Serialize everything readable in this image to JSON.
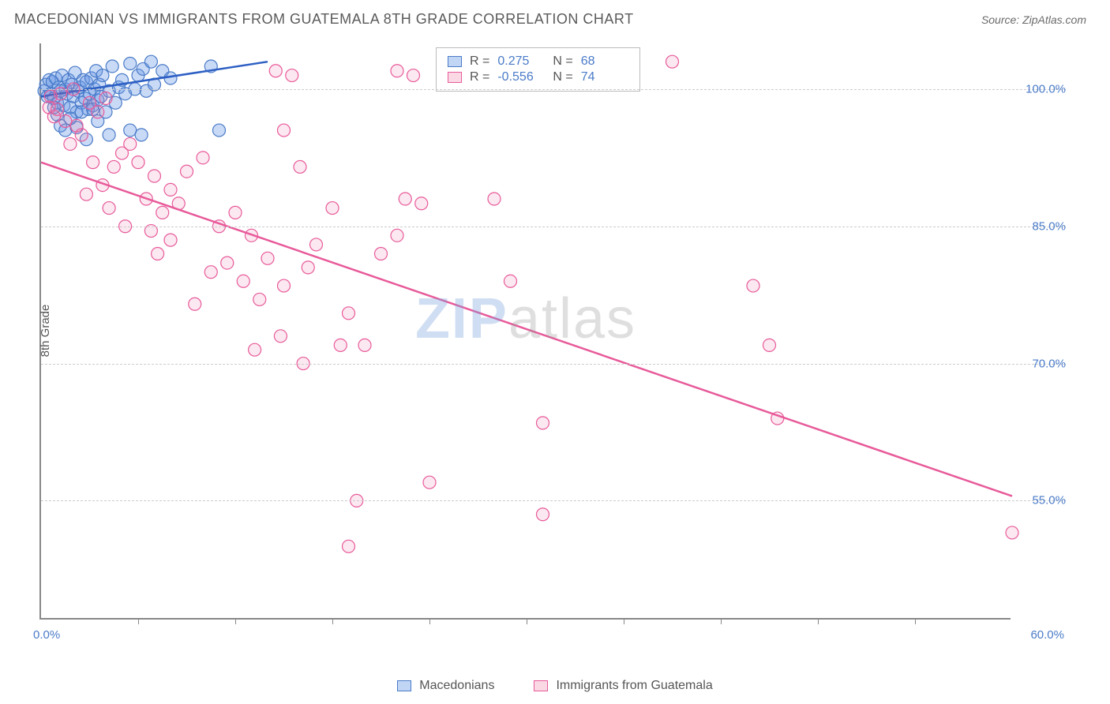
{
  "header": {
    "title": "MACEDONIAN VS IMMIGRANTS FROM GUATEMALA 8TH GRADE CORRELATION CHART",
    "source": "Source: ZipAtlas.com"
  },
  "chart": {
    "type": "scatter",
    "y_label": "8th Grade",
    "background_color": "#ffffff",
    "grid_color": "#cccccc",
    "axis_color": "#888888",
    "tick_label_color": "#4a7bc8",
    "label_fontsize": 15,
    "title_fontsize": 18,
    "xlim": [
      0,
      60
    ],
    "ylim": [
      42,
      105
    ],
    "x_ticks": [
      0,
      30,
      60
    ],
    "x_tick_labels": [
      "0.0%",
      "",
      "60.0%"
    ],
    "x_minor_ticks": [
      6,
      12,
      18,
      24,
      30,
      36,
      42,
      48,
      54
    ],
    "y_ticks": [
      55,
      70,
      85,
      100
    ],
    "y_tick_labels": [
      "55.0%",
      "70.0%",
      "85.0%",
      "100.0%"
    ],
    "marker_radius": 8,
    "marker_fill_opacity": 0.3,
    "marker_stroke_width": 1.2,
    "line_width": 2.5,
    "watermark": {
      "text_a": "ZIP",
      "text_b": "atlas"
    },
    "series": [
      {
        "name": "Macedonians",
        "color": "#4a7bc8",
        "fill": "rgba(100,150,230,0.35)",
        "R": "0.275",
        "N": "68",
        "trend": {
          "x1": 0,
          "y1": 99.2,
          "x2": 14,
          "y2": 103
        },
        "points": [
          [
            0.2,
            99.8
          ],
          [
            0.3,
            100.5
          ],
          [
            0.4,
            99.2
          ],
          [
            0.5,
            101
          ],
          [
            0.6,
            99.5
          ],
          [
            0.7,
            100.8
          ],
          [
            0.8,
            99
          ],
          [
            0.9,
            101.2
          ],
          [
            1.0,
            98.5
          ],
          [
            1.1,
            100.2
          ],
          [
            1.2,
            99.8
          ],
          [
            1.3,
            101.5
          ],
          [
            1.4,
            98.2
          ],
          [
            1.5,
            100
          ],
          [
            1.6,
            99.5
          ],
          [
            1.7,
            101
          ],
          [
            1.8,
            98
          ],
          [
            1.9,
            100.5
          ],
          [
            2.0,
            99.2
          ],
          [
            2.1,
            101.8
          ],
          [
            2.2,
            97.5
          ],
          [
            2.3,
            99.8
          ],
          [
            2.4,
            100.2
          ],
          [
            2.5,
            98.5
          ],
          [
            2.6,
            101
          ],
          [
            2.7,
            99
          ],
          [
            2.8,
            100.8
          ],
          [
            2.9,
            97.8
          ],
          [
            3.0,
            99.5
          ],
          [
            3.1,
            101.2
          ],
          [
            3.2,
            98.2
          ],
          [
            3.3,
            100
          ],
          [
            3.4,
            102
          ],
          [
            3.5,
            98.8
          ],
          [
            3.6,
            100.5
          ],
          [
            3.7,
            99.2
          ],
          [
            3.8,
            101.5
          ],
          [
            4.0,
            97.5
          ],
          [
            4.2,
            99.8
          ],
          [
            4.4,
            102.5
          ],
          [
            4.6,
            98.5
          ],
          [
            4.8,
            100.2
          ],
          [
            5.0,
            101
          ],
          [
            5.2,
            99.5
          ],
          [
            5.5,
            102.8
          ],
          [
            5.8,
            100
          ],
          [
            6.0,
            101.5
          ],
          [
            6.3,
            102.2
          ],
          [
            6.5,
            99.8
          ],
          [
            6.8,
            103
          ],
          [
            7.0,
            100.5
          ],
          [
            7.5,
            102
          ],
          [
            8.0,
            101.2
          ],
          [
            1.2,
            96
          ],
          [
            1.5,
            95.5
          ],
          [
            2.2,
            95.8
          ],
          [
            2.8,
            94.5
          ],
          [
            1.8,
            96.8
          ],
          [
            3.5,
            96.5
          ],
          [
            4.2,
            95
          ],
          [
            5.5,
            95.5
          ],
          [
            1.0,
            97.2
          ],
          [
            0.8,
            98
          ],
          [
            2.5,
            97.5
          ],
          [
            3.2,
            97.8
          ],
          [
            10.5,
            102.5
          ],
          [
            11,
            95.5
          ],
          [
            6.2,
            95
          ]
        ]
      },
      {
        "name": "Immigrants from Guatemala",
        "color": "#e85a9a",
        "fill": "rgba(240,130,170,0.18)",
        "R": "-0.556",
        "N": "74",
        "trend": {
          "x1": 0,
          "y1": 92,
          "x2": 60,
          "y2": 55.5
        },
        "points": [
          [
            0.5,
            98
          ],
          [
            0.8,
            97
          ],
          [
            1.2,
            99.5
          ],
          [
            1.5,
            96.5
          ],
          [
            2,
            100
          ],
          [
            2.5,
            95
          ],
          [
            3,
            98.5
          ],
          [
            1.8,
            94
          ],
          [
            2.2,
            96
          ],
          [
            3.5,
            97.5
          ],
          [
            4,
            99
          ],
          [
            1,
            97.8
          ],
          [
            0.6,
            99.2
          ],
          [
            3.2,
            92
          ],
          [
            4.5,
            91.5
          ],
          [
            5,
            93
          ],
          [
            2.8,
            88.5
          ],
          [
            3.8,
            89.5
          ],
          [
            6,
            92
          ],
          [
            5.5,
            94
          ],
          [
            7,
            90.5
          ],
          [
            4.2,
            87
          ],
          [
            8,
            89
          ],
          [
            6.5,
            88
          ],
          [
            9,
            91
          ],
          [
            7.5,
            86.5
          ],
          [
            10,
            92.5
          ],
          [
            5.2,
            85
          ],
          [
            8.5,
            87.5
          ],
          [
            15,
            95.5
          ],
          [
            14.5,
            102
          ],
          [
            15.5,
            101.5
          ],
          [
            11,
            85
          ],
          [
            12,
            86.5
          ],
          [
            13,
            84
          ],
          [
            16,
            91.5
          ],
          [
            17,
            83
          ],
          [
            14,
            81.5
          ],
          [
            22,
            102
          ],
          [
            23,
            101.5
          ],
          [
            22.5,
            88
          ],
          [
            20,
            72
          ],
          [
            19,
            75.5
          ],
          [
            21,
            82
          ],
          [
            23.5,
            87.5
          ],
          [
            22,
            84
          ],
          [
            18,
            87
          ],
          [
            9.5,
            76.5
          ],
          [
            12.5,
            79
          ],
          [
            11.5,
            81
          ],
          [
            10.5,
            80
          ],
          [
            13.5,
            77
          ],
          [
            15,
            78.5
          ],
          [
            16.5,
            80.5
          ],
          [
            8,
            83.5
          ],
          [
            7.2,
            82
          ],
          [
            6.8,
            84.5
          ],
          [
            29,
            79
          ],
          [
            28.5,
            103
          ],
          [
            28,
            88
          ],
          [
            39,
            103
          ],
          [
            31,
            53.5
          ],
          [
            31,
            63.5
          ],
          [
            24,
            57
          ],
          [
            19.5,
            55
          ],
          [
            19,
            50
          ],
          [
            44,
            78.5
          ],
          [
            45,
            72
          ],
          [
            45.5,
            64
          ],
          [
            60,
            51.5
          ],
          [
            18.5,
            72
          ],
          [
            16.2,
            70
          ],
          [
            14.8,
            73
          ],
          [
            13.2,
            71.5
          ]
        ]
      }
    ],
    "bottom_legend": [
      {
        "swatch": "blue",
        "label": "Macedonians"
      },
      {
        "swatch": "pink",
        "label": "Immigrants from Guatemala"
      }
    ],
    "stats_legend_labels": {
      "r": "R =",
      "n": "N ="
    }
  }
}
